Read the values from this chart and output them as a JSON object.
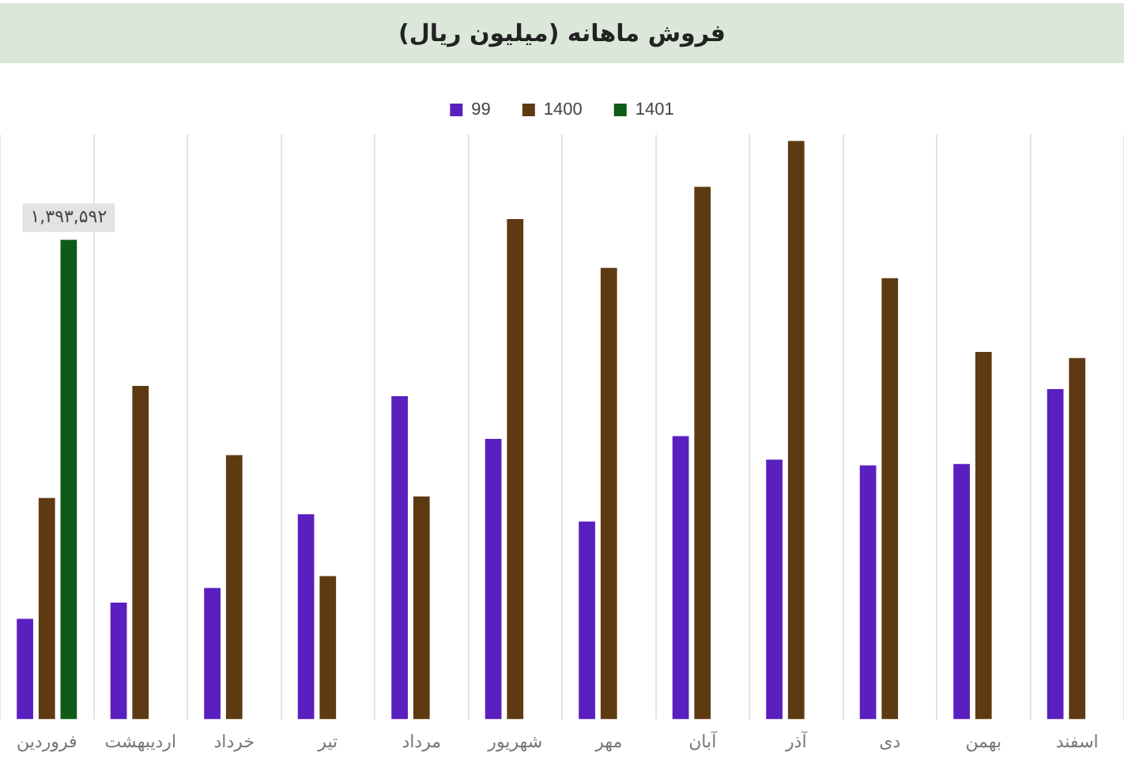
{
  "chart_data": {
    "type": "bar",
    "title": "فروش ماهانه (میلیون ریال)",
    "categories": [
      "فروردین",
      "اردیبهشت",
      "خرداد",
      "تیر",
      "مرداد",
      "شهریور",
      "مهر",
      "آبان",
      "آذر",
      "دی",
      "بهمن",
      "اسفند"
    ],
    "series": [
      {
        "name": "99",
        "color": "#5a1fbf",
        "values": [
          292000,
          339000,
          382000,
          596000,
          939000,
          815000,
          575000,
          823000,
          755000,
          738000,
          742000,
          960000
        ]
      },
      {
        "name": "1400",
        "color": "#5e3a12",
        "values": [
          643000,
          969000,
          768000,
          416000,
          648000,
          1454000,
          1312000,
          1548000,
          1681000,
          1282000,
          1068000,
          1050000
        ]
      },
      {
        "name": "1401",
        "color": "#0f5a17",
        "values": [
          1393592,
          null,
          null,
          null,
          null,
          null,
          null,
          null,
          null,
          null,
          null,
          null
        ],
        "value_labels": [
          "۱,۳۹۳,۵۹۲",
          null,
          null,
          null,
          null,
          null,
          null,
          null,
          null,
          null,
          null,
          null
        ]
      }
    ],
    "ylim": [
      0,
      1700000
    ],
    "tick_labels": "x",
    "grid": "x",
    "legend": "top"
  }
}
